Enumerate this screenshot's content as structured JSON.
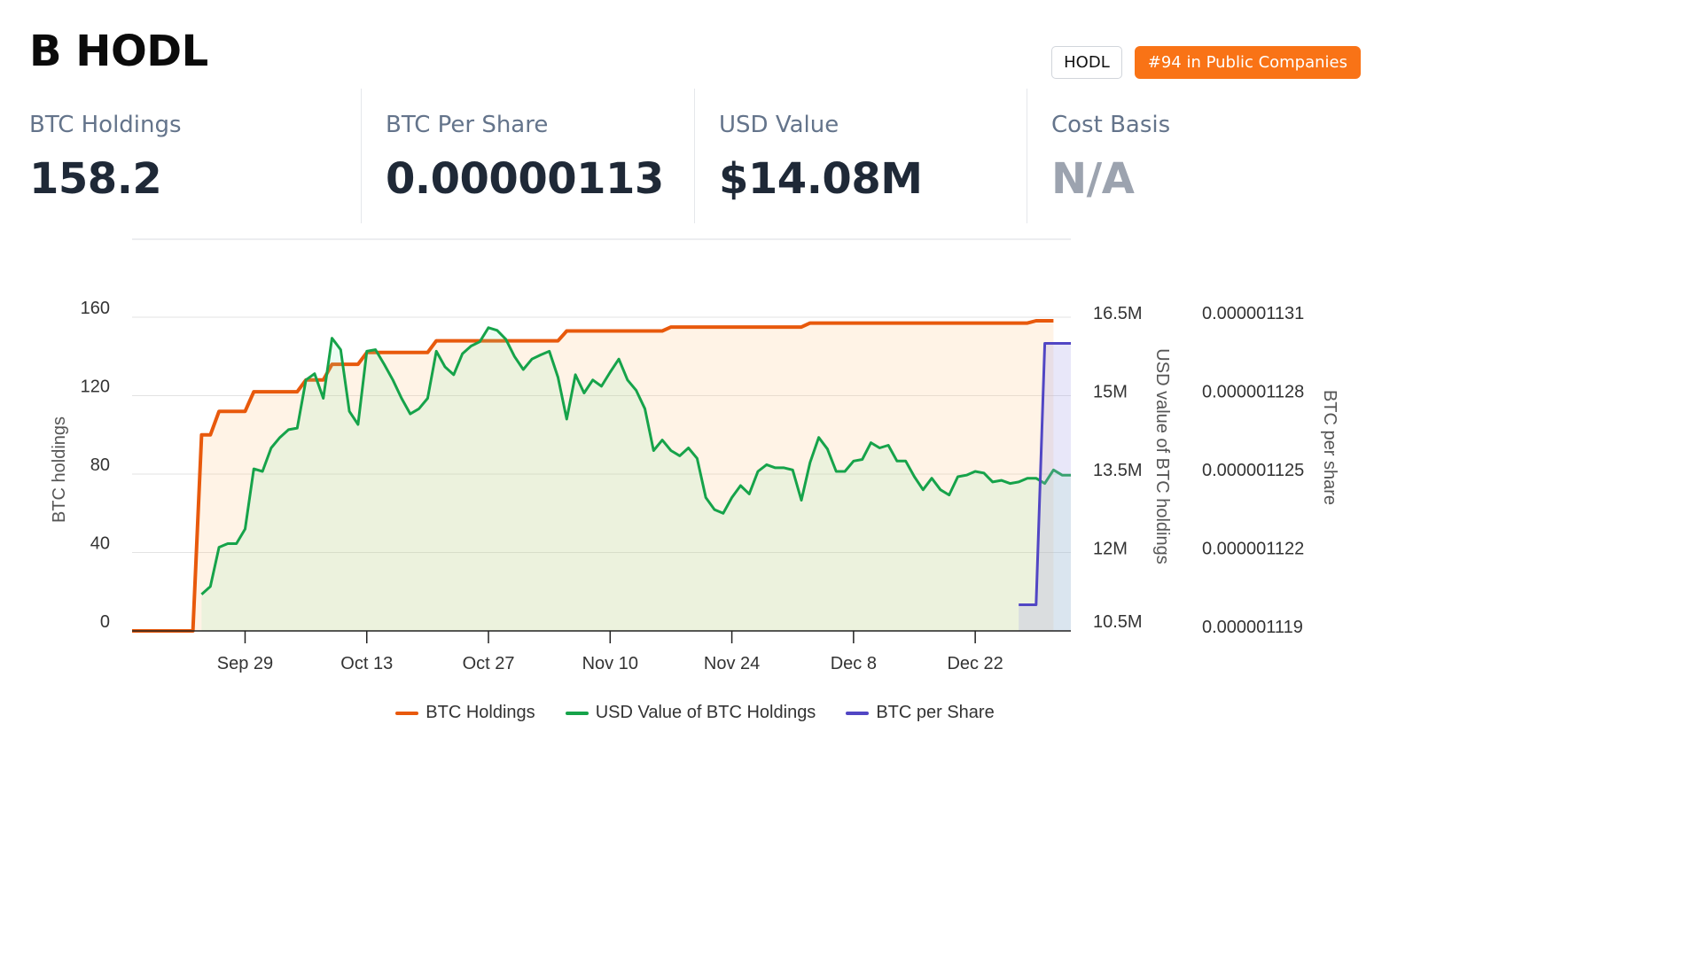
{
  "header": {
    "company_name": "B HODL",
    "ticker": "HODL",
    "rank_badge": "#94 in Public Companies"
  },
  "stats": [
    {
      "label": "BTC Holdings",
      "value": "158.2"
    },
    {
      "label": "BTC Per Share",
      "value": "0.00000113"
    },
    {
      "label": "USD Value",
      "value": "$14.08M"
    },
    {
      "label": "Cost Basis",
      "value": "N/A"
    }
  ],
  "colors": {
    "btc_holdings": "#e8590c",
    "usd_value": "#16a34a",
    "btc_per_share": "#5146c4",
    "rank_badge": "#f97316"
  },
  "chart_data": {
    "type": "line",
    "x_type": "date",
    "x_tick_labels": [
      "Sep 29",
      "Oct 13",
      "Oct 27",
      "Nov 10",
      "Nov 24",
      "Dec 8",
      "Dec 22"
    ],
    "axes": {
      "left": {
        "label": "BTC holdings",
        "ticks": [
          "0",
          "40",
          "80",
          "120",
          "160"
        ],
        "range": [
          0,
          160
        ]
      },
      "right1": {
        "label": "USD value of BTC holdings",
        "ticks": [
          "10.5M",
          "12M",
          "13.5M",
          "15M",
          "16.5M"
        ],
        "range": [
          10500000,
          16500000
        ]
      },
      "right2": {
        "label": "BTC per share",
        "ticks": [
          "0.000001119",
          "0.000001122",
          "0.000001125",
          "0.000001128",
          "0.000001131"
        ],
        "range": [
          1.119e-06,
          1.131e-06
        ]
      }
    },
    "grid": true,
    "legend_position": "bottom",
    "series": [
      {
        "name": "BTC Holdings",
        "axis": "left",
        "points": [
          [
            "2024-09-16",
            0
          ],
          [
            "2024-09-23",
            0
          ],
          [
            "2024-09-24",
            100
          ],
          [
            "2024-09-25",
            100
          ],
          [
            "2024-09-26",
            112
          ],
          [
            "2024-09-29",
            112
          ],
          [
            "2024-09-30",
            122
          ],
          [
            "2024-10-05",
            122
          ],
          [
            "2024-10-06",
            128
          ],
          [
            "2024-10-08",
            128
          ],
          [
            "2024-10-09",
            136
          ],
          [
            "2024-10-12",
            136
          ],
          [
            "2024-10-13",
            142
          ],
          [
            "2024-10-20",
            142
          ],
          [
            "2024-10-21",
            148
          ],
          [
            "2024-11-04",
            148
          ],
          [
            "2024-11-05",
            153
          ],
          [
            "2024-11-16",
            153
          ],
          [
            "2024-11-17",
            155
          ],
          [
            "2024-12-02",
            155
          ],
          [
            "2024-12-03",
            157
          ],
          [
            "2024-12-28",
            157
          ],
          [
            "2024-12-29",
            158.2
          ],
          [
            "2024-12-31",
            158.2
          ]
        ]
      },
      {
        "name": "USD Value of BTC Holdings",
        "axis": "right1",
        "points": [
          [
            "2024-09-24",
            11.2
          ],
          [
            "2024-09-25",
            11.35
          ],
          [
            "2024-09-26",
            12.1
          ],
          [
            "2024-09-27",
            12.17
          ],
          [
            "2024-09-28",
            12.17
          ],
          [
            "2024-09-29",
            12.45
          ],
          [
            "2024-09-30",
            13.6
          ],
          [
            "2024-10-01",
            13.55
          ],
          [
            "2024-10-02",
            14.0
          ],
          [
            "2024-10-03",
            14.2
          ],
          [
            "2024-10-04",
            14.35
          ],
          [
            "2024-10-05",
            14.38
          ],
          [
            "2024-10-06",
            15.3
          ],
          [
            "2024-10-07",
            15.42
          ],
          [
            "2024-10-08",
            14.95
          ],
          [
            "2024-10-09",
            16.1
          ],
          [
            "2024-10-10",
            15.88
          ],
          [
            "2024-10-11",
            14.7
          ],
          [
            "2024-10-12",
            14.45
          ],
          [
            "2024-10-13",
            15.85
          ],
          [
            "2024-10-14",
            15.88
          ],
          [
            "2024-10-15",
            15.6
          ],
          [
            "2024-10-16",
            15.3
          ],
          [
            "2024-10-17",
            14.95
          ],
          [
            "2024-10-18",
            14.65
          ],
          [
            "2024-10-19",
            14.75
          ],
          [
            "2024-10-20",
            14.95
          ],
          [
            "2024-10-21",
            15.85
          ],
          [
            "2024-10-22",
            15.55
          ],
          [
            "2024-10-23",
            15.4
          ],
          [
            "2024-10-24",
            15.8
          ],
          [
            "2024-10-25",
            15.95
          ],
          [
            "2024-10-26",
            16.03
          ],
          [
            "2024-10-27",
            16.3
          ],
          [
            "2024-10-28",
            16.25
          ],
          [
            "2024-10-29",
            16.08
          ],
          [
            "2024-10-30",
            15.75
          ],
          [
            "2024-10-31",
            15.5
          ],
          [
            "2024-11-01",
            15.7
          ],
          [
            "2024-11-02",
            15.78
          ],
          [
            "2024-11-03",
            15.85
          ],
          [
            "2024-11-04",
            15.35
          ],
          [
            "2024-11-05",
            14.55
          ],
          [
            "2024-11-06",
            15.4
          ],
          [
            "2024-11-07",
            15.05
          ],
          [
            "2024-11-08",
            15.3
          ],
          [
            "2024-11-09",
            15.18
          ],
          [
            "2024-11-10",
            15.45
          ],
          [
            "2024-11-11",
            15.7
          ],
          [
            "2024-11-12",
            15.3
          ],
          [
            "2024-11-13",
            15.1
          ],
          [
            "2024-11-14",
            14.75
          ],
          [
            "2024-11-15",
            13.95
          ],
          [
            "2024-11-16",
            14.15
          ],
          [
            "2024-11-17",
            13.95
          ],
          [
            "2024-11-18",
            13.85
          ],
          [
            "2024-11-19",
            14.0
          ],
          [
            "2024-11-20",
            13.8
          ],
          [
            "2024-11-21",
            13.05
          ],
          [
            "2024-11-22",
            12.82
          ],
          [
            "2024-11-23",
            12.75
          ],
          [
            "2024-11-24",
            13.05
          ],
          [
            "2024-11-25",
            13.28
          ],
          [
            "2024-11-26",
            13.12
          ],
          [
            "2024-11-27",
            13.55
          ],
          [
            "2024-11-28",
            13.68
          ],
          [
            "2024-11-29",
            13.62
          ],
          [
            "2024-11-30",
            13.62
          ],
          [
            "2024-12-01",
            13.58
          ],
          [
            "2024-12-02",
            13.0
          ],
          [
            "2024-12-03",
            13.72
          ],
          [
            "2024-12-04",
            14.2
          ],
          [
            "2024-12-05",
            13.98
          ],
          [
            "2024-12-06",
            13.55
          ],
          [
            "2024-12-07",
            13.55
          ],
          [
            "2024-12-08",
            13.75
          ],
          [
            "2024-12-09",
            13.78
          ],
          [
            "2024-12-10",
            14.1
          ],
          [
            "2024-12-11",
            14.0
          ],
          [
            "2024-12-12",
            14.05
          ],
          [
            "2024-12-13",
            13.75
          ],
          [
            "2024-12-14",
            13.75
          ],
          [
            "2024-12-15",
            13.45
          ],
          [
            "2024-12-16",
            13.2
          ],
          [
            "2024-12-17",
            13.42
          ],
          [
            "2024-12-18",
            13.2
          ],
          [
            "2024-12-19",
            13.1
          ],
          [
            "2024-12-20",
            13.45
          ],
          [
            "2024-12-21",
            13.48
          ],
          [
            "2024-12-22",
            13.55
          ],
          [
            "2024-12-23",
            13.52
          ],
          [
            "2024-12-24",
            13.35
          ],
          [
            "2024-12-25",
            13.38
          ],
          [
            "2024-12-26",
            13.32
          ],
          [
            "2024-12-27",
            13.35
          ],
          [
            "2024-12-28",
            13.42
          ],
          [
            "2024-12-29",
            13.42
          ],
          [
            "2024-12-30",
            13.32
          ],
          [
            "2024-12-31",
            13.58
          ],
          [
            "2025-01-01",
            13.48
          ],
          [
            "2025-01-02",
            13.48
          ]
        ]
      },
      {
        "name": "BTC per Share",
        "axis": "right2",
        "points": [
          [
            "2024-12-27",
            1.12e-06
          ],
          [
            "2024-12-29",
            1.12e-06
          ],
          [
            "2024-12-30",
            1.13e-06
          ],
          [
            "2025-01-02",
            1.13e-06
          ]
        ]
      }
    ]
  }
}
